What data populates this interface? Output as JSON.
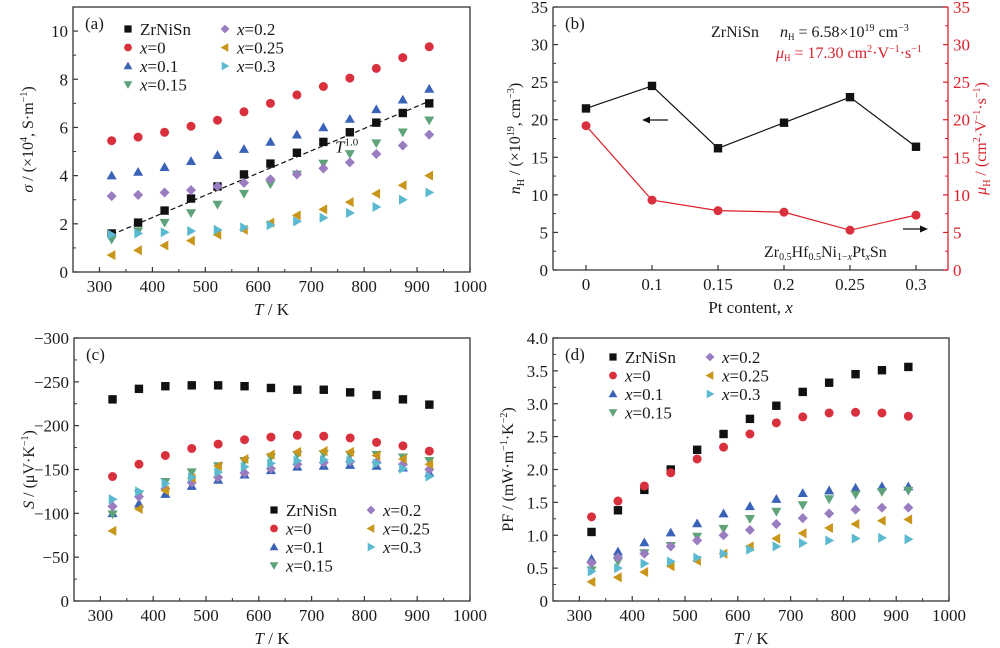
{
  "figure": {
    "colors": {
      "ZrNiSn": "#111111",
      "x=0": "#d9303e",
      "x=0.1": "#3a63b8",
      "x=0.15": "#5fa37a",
      "x=0.2": "#9a7cc0",
      "x=0.25": "#c8961a",
      "x=0.3": "#5bb9d0",
      "axis": "#333333",
      "right_axis": "#d9202a"
    }
  },
  "chart_data": [
    {
      "id": "a",
      "type": "scatter",
      "panel_label": "(a)",
      "title": "",
      "xlabel": "T / K",
      "ylabel": "σ / (×10⁴, S·m⁻¹)",
      "xlim": [
        250,
        1000
      ],
      "ylim": [
        0,
        11
      ],
      "xticks": [
        300,
        400,
        500,
        600,
        700,
        800,
        900,
        1000
      ],
      "yticks": [
        0,
        2,
        4,
        6,
        8,
        10
      ],
      "legend": {
        "placement": "top-left",
        "columns": 2
      },
      "annotation": {
        "text": "T",
        "superscript": "1.0",
        "x": 745,
        "y": 5.2
      },
      "fit_line": {
        "style": "dashed",
        "label": "T^1.0",
        "x": [
          323,
          935
        ],
        "y": [
          1.55,
          7.2
        ]
      },
      "x": [
        323,
        373,
        423,
        473,
        523,
        573,
        623,
        673,
        723,
        773,
        823,
        873,
        923
      ],
      "series": [
        {
          "name": "ZrNiSn",
          "marker": "square",
          "values": [
            1.6,
            2.05,
            2.55,
            3.05,
            3.55,
            4.05,
            4.5,
            4.95,
            5.4,
            5.8,
            6.2,
            6.6,
            7.0
          ]
        },
        {
          "name": "x=0",
          "marker": "circle",
          "values": [
            5.45,
            5.6,
            5.8,
            6.05,
            6.3,
            6.65,
            7.0,
            7.35,
            7.7,
            8.05,
            8.45,
            8.9,
            9.35
          ]
        },
        {
          "name": "x=0.1",
          "marker": "triangle-up",
          "values": [
            4.0,
            4.15,
            4.35,
            4.6,
            4.85,
            5.1,
            5.4,
            5.7,
            6.0,
            6.35,
            6.75,
            7.15,
            7.6
          ]
        },
        {
          "name": "x=0.15",
          "marker": "triangle-down",
          "values": [
            1.35,
            1.7,
            2.05,
            2.45,
            2.8,
            3.25,
            3.65,
            4.05,
            4.5,
            4.9,
            5.35,
            5.8,
            6.3
          ]
        },
        {
          "name": "x=0.2",
          "marker": "diamond",
          "values": [
            3.15,
            3.2,
            3.3,
            3.4,
            3.55,
            3.7,
            3.85,
            4.05,
            4.3,
            4.55,
            4.9,
            5.25,
            5.7
          ]
        },
        {
          "name": "x=0.25",
          "marker": "triangle-left",
          "values": [
            0.7,
            0.9,
            1.1,
            1.3,
            1.55,
            1.75,
            2.05,
            2.35,
            2.6,
            2.9,
            3.25,
            3.6,
            4.0
          ]
        },
        {
          "name": "x=0.3",
          "marker": "triangle-right",
          "values": [
            1.55,
            1.6,
            1.65,
            1.7,
            1.75,
            1.85,
            1.95,
            2.1,
            2.25,
            2.45,
            2.7,
            3.0,
            3.3
          ]
        }
      ]
    },
    {
      "id": "b",
      "type": "line",
      "panel_label": "(b)",
      "xlabel": "Pt content, x",
      "ylabel": "nH / (×10¹⁹, cm⁻³)",
      "ylabel_right": "μH / (cm²·V⁻¹·s⁻¹)",
      "categories": [
        "0",
        "0.1",
        "0.15",
        "0.2",
        "0.25",
        "0.3"
      ],
      "ylim": [
        0,
        35
      ],
      "ylim_right": [
        0,
        35
      ],
      "yticks": [
        0,
        5,
        10,
        15,
        20,
        25,
        30,
        35
      ],
      "annotations": {
        "ref_label": "ZrNiSn",
        "nH_text": "nH = 6.58×10¹⁹ cm⁻³",
        "muH_text": "μH = 17.30 cm²·V⁻¹·s⁻¹",
        "formula": "Zr0.5Hf0.5Ni1−xPtxSn",
        "arrow_left": "points to left axis (nH)",
        "arrow_right": "points to right axis (μH)"
      },
      "series": [
        {
          "name": "nH",
          "axis": "left",
          "marker": "square",
          "values": [
            21.5,
            24.5,
            16.2,
            19.6,
            23.0,
            16.4
          ]
        },
        {
          "name": "μH",
          "axis": "right",
          "marker": "circle",
          "values": [
            19.2,
            9.3,
            7.9,
            7.7,
            5.3,
            7.3
          ]
        }
      ]
    },
    {
      "id": "c",
      "type": "scatter",
      "panel_label": "(c)",
      "xlabel": "T / K",
      "ylabel": "S / (μV·K⁻¹)",
      "xlim": [
        250,
        1000
      ],
      "ylim": [
        0,
        -300
      ],
      "y_inverted": true,
      "xticks": [
        300,
        400,
        500,
        600,
        700,
        800,
        900,
        1000
      ],
      "yticks": [
        0,
        -50,
        -100,
        -150,
        -200,
        -250,
        -300
      ],
      "ytick_labels": [
        "0",
        "−50",
        "−100",
        "−150",
        "−200",
        "−250",
        "−300"
      ],
      "legend": {
        "placement": "bottom-right",
        "columns": 2
      },
      "x": [
        323,
        373,
        423,
        473,
        523,
        573,
        623,
        673,
        723,
        773,
        823,
        873,
        923
      ],
      "series": [
        {
          "name": "ZrNiSn",
          "marker": "square",
          "values": [
            -230,
            -242,
            -245,
            -246,
            -246,
            -245,
            -243,
            -241,
            -241,
            -238,
            -235,
            -230,
            -224
          ]
        },
        {
          "name": "x=0",
          "marker": "circle",
          "values": [
            -142,
            -156,
            -166,
            -174,
            -179,
            -184,
            -187,
            -189,
            -188,
            -186,
            -181,
            -177,
            -171
          ]
        },
        {
          "name": "x=0.1",
          "marker": "triangle-up",
          "values": [
            -100,
            -111,
            -122,
            -131,
            -138,
            -144,
            -149,
            -153,
            -154,
            -155,
            -154,
            -152,
            -146
          ]
        },
        {
          "name": "x=0.15",
          "marker": "triangle-down",
          "values": [
            -99,
            -122,
            -136,
            -147,
            -154,
            -160,
            -164,
            -167,
            -168,
            -167,
            -167,
            -164,
            -160
          ]
        },
        {
          "name": "x=0.2",
          "marker": "diamond",
          "values": [
            -108,
            -119,
            -128,
            -135,
            -141,
            -146,
            -151,
            -156,
            -158,
            -159,
            -158,
            -156,
            -150
          ]
        },
        {
          "name": "x=0.25",
          "marker": "triangle-left",
          "values": [
            -80,
            -105,
            -126,
            -140,
            -154,
            -162,
            -167,
            -170,
            -171,
            -170,
            -166,
            -162,
            -156
          ]
        },
        {
          "name": "x=0.3",
          "marker": "triangle-right",
          "values": [
            -116,
            -125,
            -134,
            -141,
            -147,
            -153,
            -157,
            -160,
            -161,
            -160,
            -157,
            -151,
            -142
          ]
        }
      ]
    },
    {
      "id": "d",
      "type": "scatter",
      "panel_label": "(d)",
      "xlabel": "T / K",
      "ylabel": "PF / (mW·m⁻¹·K⁻²)",
      "xlim": [
        250,
        1000
      ],
      "ylim": [
        0,
        4.0
      ],
      "xticks": [
        300,
        400,
        500,
        600,
        700,
        800,
        900,
        1000
      ],
      "yticks": [
        0,
        0.5,
        1.0,
        1.5,
        2.0,
        2.5,
        3.0,
        3.5,
        4.0
      ],
      "ytick_labels": [
        "0",
        "0.5",
        "1.0",
        "1.5",
        "2.0",
        "2.5",
        "3.0",
        "3.5",
        "4.0"
      ],
      "legend": {
        "placement": "top-left",
        "columns": 2
      },
      "x": [
        323,
        373,
        423,
        473,
        523,
        573,
        623,
        673,
        723,
        773,
        823,
        873,
        923
      ],
      "series": [
        {
          "name": "ZrNiSn",
          "marker": "square",
          "values": [
            1.05,
            1.38,
            1.69,
            2.0,
            2.3,
            2.54,
            2.77,
            2.97,
            3.18,
            3.32,
            3.45,
            3.51,
            3.56
          ]
        },
        {
          "name": "x=0",
          "marker": "circle",
          "values": [
            1.28,
            1.52,
            1.75,
            1.95,
            2.16,
            2.34,
            2.54,
            2.71,
            2.8,
            2.86,
            2.87,
            2.86,
            2.81
          ]
        },
        {
          "name": "x=0.1",
          "marker": "triangle-up",
          "values": [
            0.64,
            0.75,
            0.89,
            1.04,
            1.18,
            1.33,
            1.44,
            1.55,
            1.64,
            1.68,
            1.72,
            1.74,
            1.74
          ]
        },
        {
          "name": "x=0.15",
          "marker": "triangle-down",
          "values": [
            0.47,
            0.6,
            0.73,
            0.84,
            0.98,
            1.1,
            1.25,
            1.36,
            1.46,
            1.55,
            1.62,
            1.66,
            1.68
          ]
        },
        {
          "name": "x=0.2",
          "marker": "diamond",
          "values": [
            0.58,
            0.66,
            0.72,
            0.83,
            0.92,
            1.0,
            1.08,
            1.17,
            1.26,
            1.33,
            1.39,
            1.42,
            1.42
          ]
        },
        {
          "name": "x=0.25",
          "marker": "triangle-left",
          "values": [
            0.29,
            0.36,
            0.44,
            0.53,
            0.61,
            0.72,
            0.83,
            0.95,
            1.03,
            1.11,
            1.17,
            1.22,
            1.24
          ]
        },
        {
          "name": "x=0.3",
          "marker": "triangle-right",
          "values": [
            0.45,
            0.5,
            0.57,
            0.6,
            0.66,
            0.72,
            0.78,
            0.83,
            0.88,
            0.92,
            0.95,
            0.96,
            0.94
          ]
        }
      ]
    }
  ]
}
